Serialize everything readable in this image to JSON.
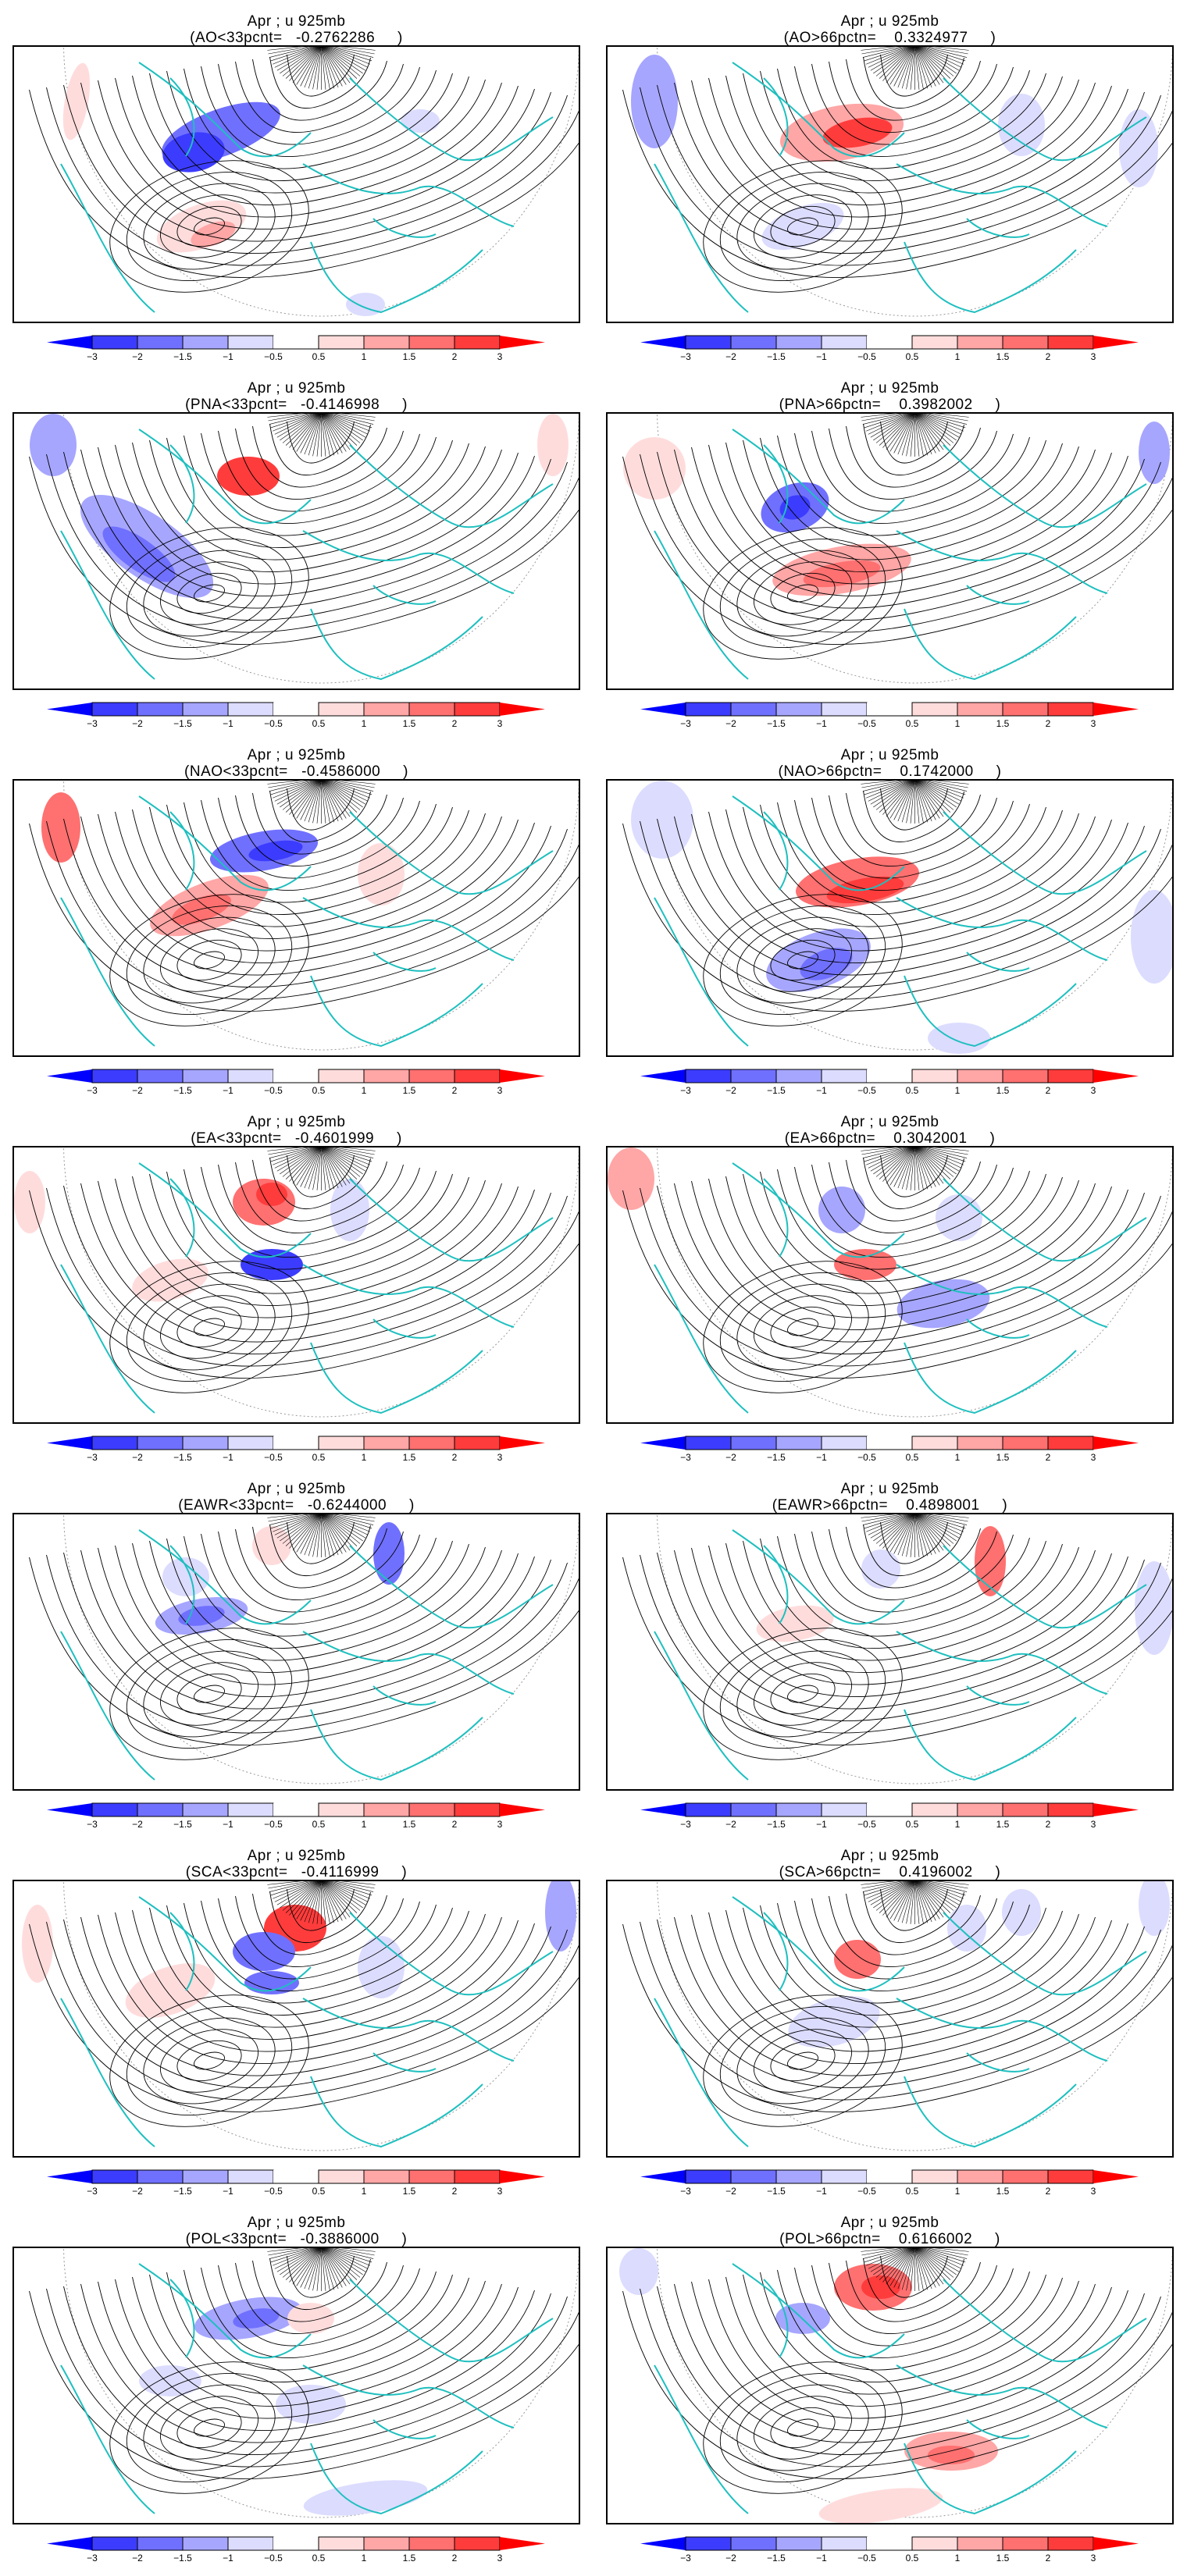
{
  "chart_data": {
    "type": "heatmap",
    "description": "Composite April u-wind anomaly at 925mb with streamlines over Northern Hemisphere polar map",
    "variable": "u 925mb",
    "month": "Apr",
    "panels": [
      {
        "title": "Apr ; u 925mb",
        "subtitle": "(AO<33pcnt=   -0.2762286     )",
        "index": "AO",
        "condition": "<33pcnt",
        "value": -0.2762286
      },
      {
        "title": "Apr ; u 925mb",
        "subtitle": "(AO>66pctn=    0.3324977     )",
        "index": "AO",
        "condition": ">66pctn",
        "value": 0.3324977
      },
      {
        "title": "Apr ; u 925mb",
        "subtitle": "(PNA<33pcnt=   -0.4146998     )",
        "index": "PNA",
        "condition": "<33pcnt",
        "value": -0.4146998
      },
      {
        "title": "Apr ; u 925mb",
        "subtitle": "(PNA>66pctn=    0.3982002     )",
        "index": "PNA",
        "condition": ">66pctn",
        "value": 0.3982002
      },
      {
        "title": "Apr ; u 925mb",
        "subtitle": "(NAO<33pcnt=   -0.4586000     )",
        "index": "NAO",
        "condition": "<33pcnt",
        "value": -0.4586
      },
      {
        "title": "Apr ; u 925mb",
        "subtitle": "(NAO>66pctn=    0.1742000     )",
        "index": "NAO",
        "condition": ">66pctn",
        "value": 0.1742
      },
      {
        "title": "Apr ; u 925mb",
        "subtitle": "(EA<33pcnt=   -0.4601999     )",
        "index": "EA",
        "condition": "<33pcnt",
        "value": -0.4601999
      },
      {
        "title": "Apr ; u 925mb",
        "subtitle": "(EA>66pctn=    0.3042001     )",
        "index": "EA",
        "condition": ">66pctn",
        "value": 0.3042001
      },
      {
        "title": "Apr ; u 925mb",
        "subtitle": "(EAWR<33pcnt=   -0.6244000     )",
        "index": "EAWR",
        "condition": "<33pcnt",
        "value": -0.6244
      },
      {
        "title": "Apr ; u 925mb",
        "subtitle": "(EAWR>66pctn=    0.4898001     )",
        "index": "EAWR",
        "condition": ">66pctn",
        "value": 0.4898001
      },
      {
        "title": "Apr ; u 925mb",
        "subtitle": "(SCA<33pcnt=   -0.4116999     )",
        "index": "SCA",
        "condition": "<33pcnt",
        "value": -0.4116999
      },
      {
        "title": "Apr ; u 925mb",
        "subtitle": "(SCA>66pctn=    0.4196002     )",
        "index": "SCA",
        "condition": ">66pctn",
        "value": 0.4196002
      },
      {
        "title": "Apr ; u 925mb",
        "subtitle": "(POL<33pcnt=   -0.3886000     )",
        "index": "POL",
        "condition": "<33pcnt",
        "value": -0.3886
      },
      {
        "title": "Apr ; u 925mb",
        "subtitle": "(POL>66pctn=    0.6166002     )",
        "index": "POL",
        "condition": ">66pctn",
        "value": 0.6166002
      }
    ],
    "colorbar": {
      "levels": [
        "-3",
        "-2",
        "-1.5",
        "-1",
        "-0.5",
        "0.5",
        "1",
        "1.5",
        "2",
        "3"
      ],
      "colors": [
        "#0000ff",
        "#3c3cff",
        "#7070ff",
        "#a6a6ff",
        "#dcdcff",
        "#ffffff",
        "#ffdcdc",
        "#ffa6a6",
        "#ff7070",
        "#ff3c3c",
        "#ff0000"
      ],
      "extend": "both"
    },
    "overlay_colors": {
      "coastlines": "#1fbfbf",
      "streamlines": "#000000",
      "gridlines": "#999999"
    }
  }
}
